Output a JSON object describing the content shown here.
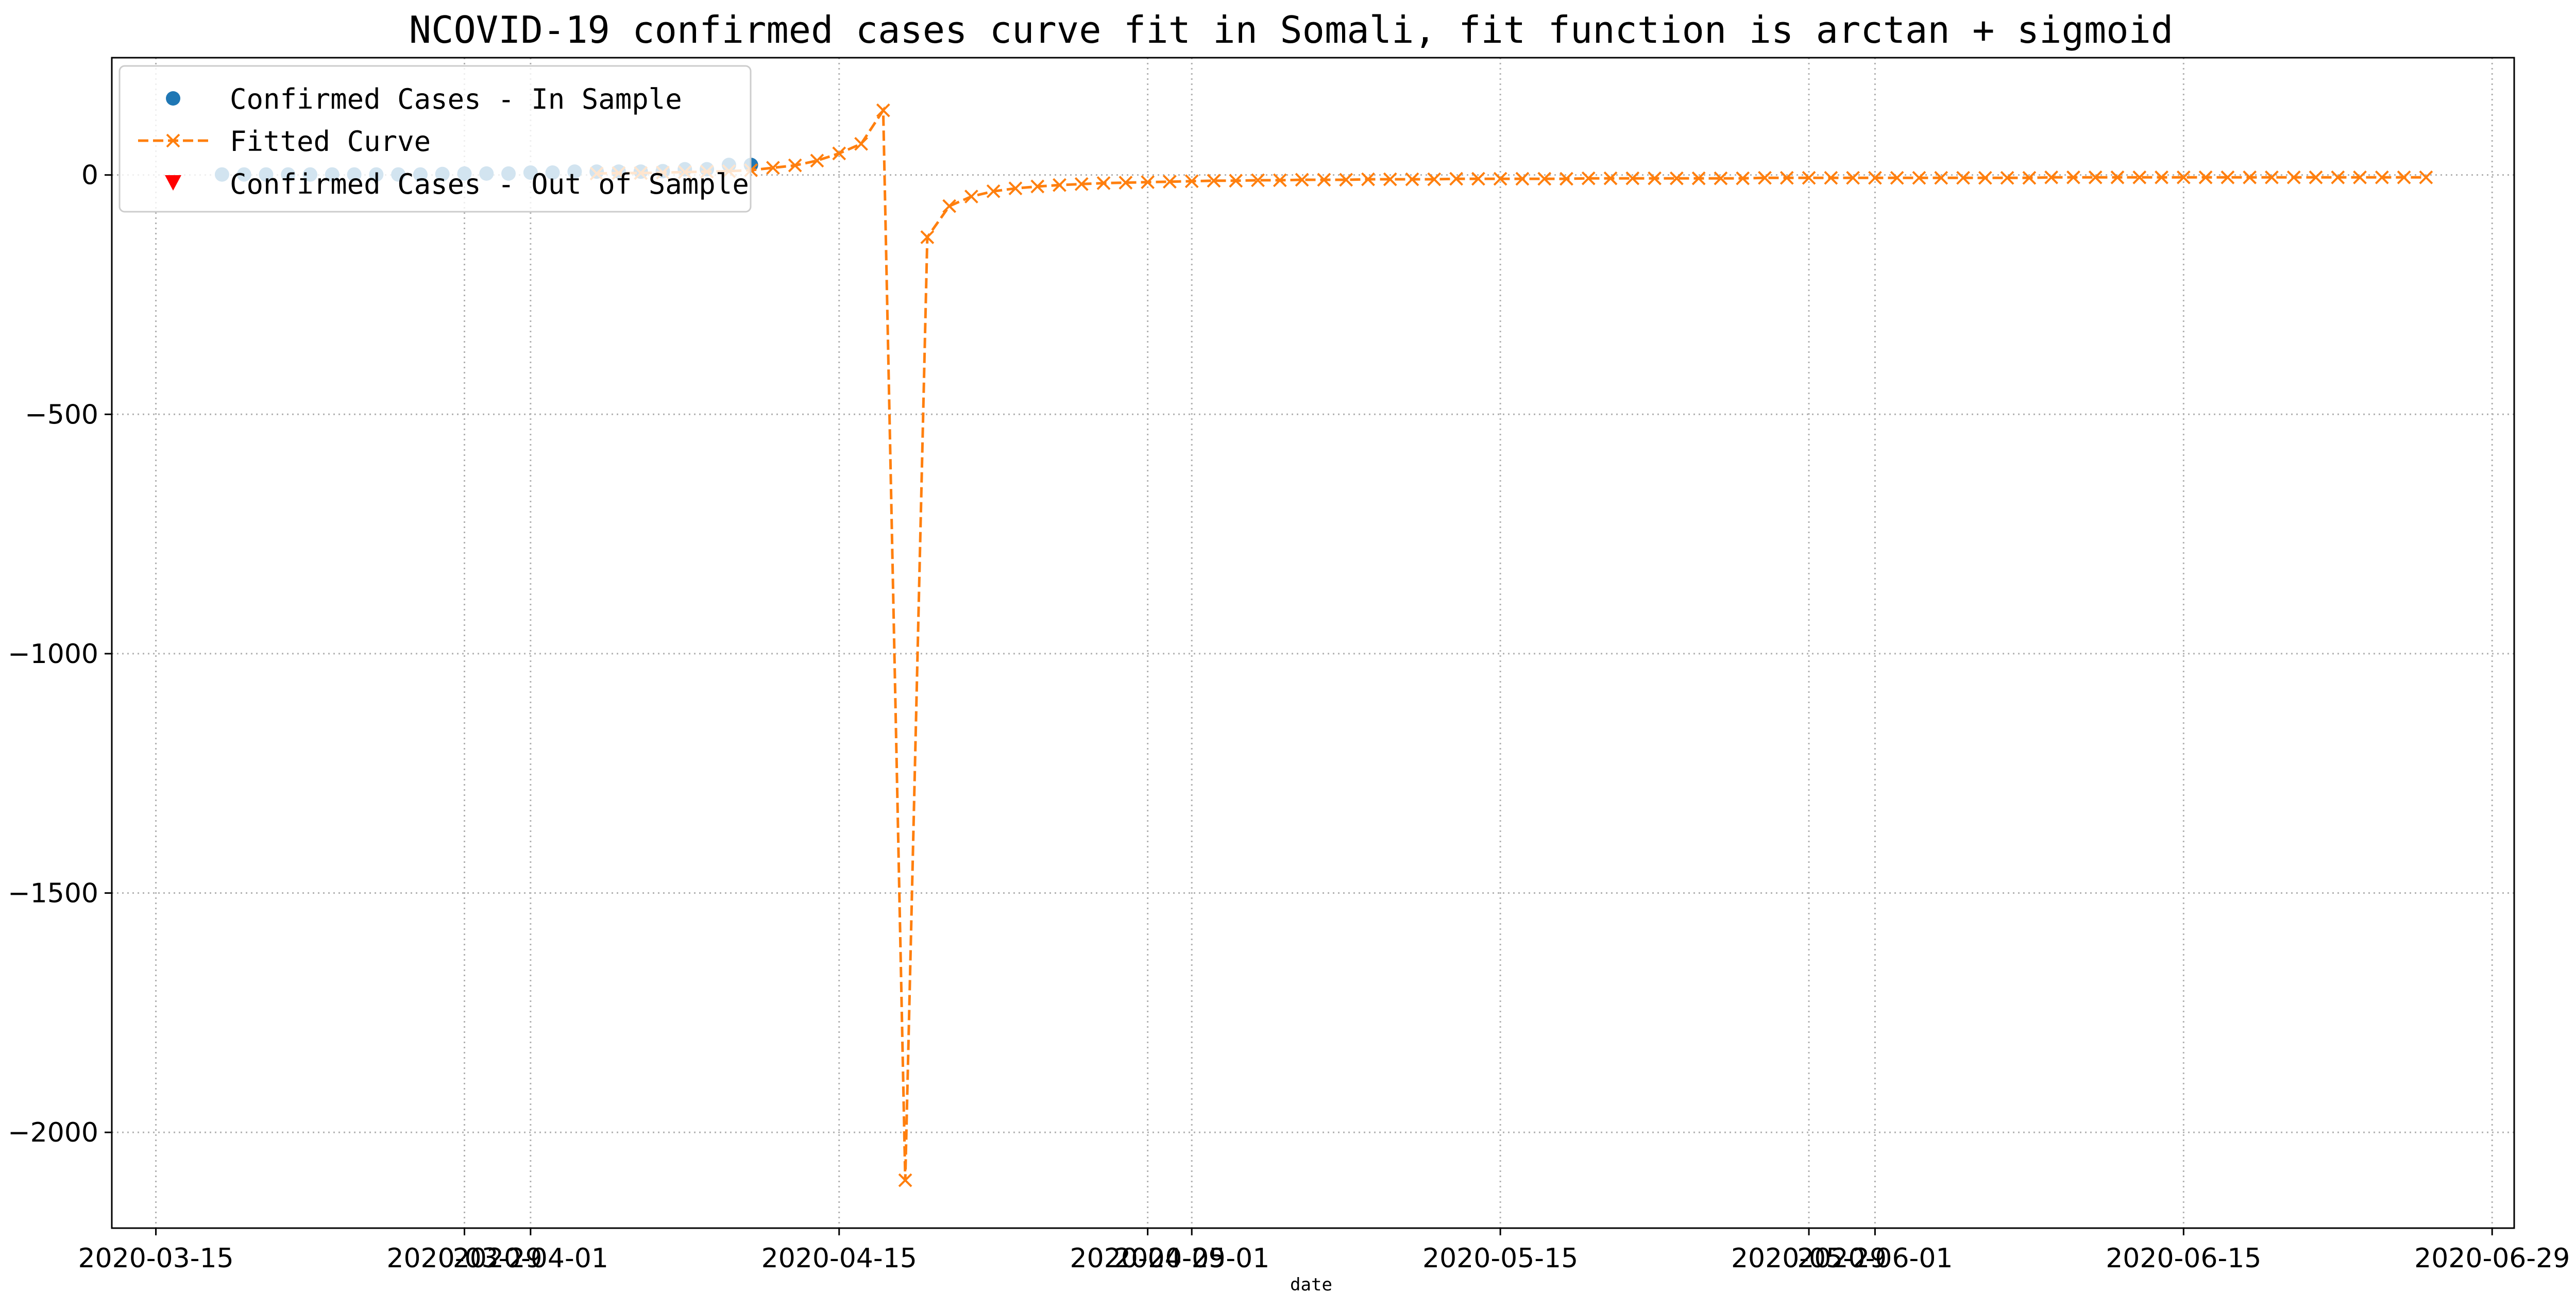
{
  "chart_data": {
    "type": "line",
    "title": "NCOVID-19 confirmed cases curve fit in Somali, fit function is arctan + sigmoid",
    "xlabel": "date",
    "ylabel": "",
    "grid": true,
    "legend_placement": "upper-left",
    "xlim": [
      "2020-03-13",
      "2020-06-30"
    ],
    "ylim": [
      -2200,
      245
    ],
    "x_ticks": [
      {
        "date": "2020-03-15",
        "label": "2020-03-15"
      },
      {
        "date": "2020-03-29",
        "label": "2020-03-29"
      },
      {
        "date": "2020-04-01",
        "label": "2020-04-01"
      },
      {
        "date": "2020-04-15",
        "label": "2020-04-15"
      },
      {
        "date": "2020-04-29",
        "label": "2020-04-29"
      },
      {
        "date": "2020-05-01",
        "label": "2020-05-01"
      },
      {
        "date": "2020-05-15",
        "label": "2020-05-15"
      },
      {
        "date": "2020-05-29",
        "label": "2020-05-29"
      },
      {
        "date": "2020-06-01",
        "label": "2020-06-01"
      },
      {
        "date": "2020-06-15",
        "label": "2020-06-15"
      },
      {
        "date": "2020-06-29",
        "label": "2020-06-29"
      }
    ],
    "y_ticks": [
      {
        "value": 0,
        "label": "0"
      },
      {
        "value": -500,
        "label": "−500"
      },
      {
        "value": -1000,
        "label": "−1000"
      },
      {
        "value": -1500,
        "label": "−1500"
      },
      {
        "value": -2000,
        "label": "−2000"
      }
    ],
    "legend": [
      {
        "label": "Confirmed Cases - In Sample",
        "marker": "circle",
        "color": "#1f77b4"
      },
      {
        "label": "Fitted Curve",
        "marker": "x-dashed",
        "color": "#ff7f0e"
      },
      {
        "label": "Confirmed Cases - Out of Sample",
        "marker": "triangle-down",
        "color": "#ff0000"
      }
    ],
    "series": [
      {
        "name": "Confirmed Cases - In Sample",
        "style": "markers",
        "marker": "circle",
        "color": "#1f77b4",
        "x": [
          "2020-03-18",
          "2020-03-19",
          "2020-03-20",
          "2020-03-21",
          "2020-03-22",
          "2020-03-23",
          "2020-03-24",
          "2020-03-25",
          "2020-03-26",
          "2020-03-27",
          "2020-03-28",
          "2020-03-29",
          "2020-03-30",
          "2020-03-31",
          "2020-04-01",
          "2020-04-02",
          "2020-04-03",
          "2020-04-04",
          "2020-04-05",
          "2020-04-06",
          "2020-04-07",
          "2020-04-08",
          "2020-04-09",
          "2020-04-10",
          "2020-04-11"
        ],
        "y": [
          1,
          1,
          1,
          1,
          1,
          1,
          1,
          1,
          1,
          1,
          2,
          3,
          3,
          3,
          5,
          5,
          7,
          7,
          7,
          7,
          8,
          12,
          12,
          21,
          21
        ]
      },
      {
        "name": "Fitted Curve",
        "style": "dashed-line-x-markers",
        "color": "#ff7f0e",
        "x": [
          "2020-04-04",
          "2020-04-05",
          "2020-04-06",
          "2020-04-07",
          "2020-04-08",
          "2020-04-09",
          "2020-04-10",
          "2020-04-11",
          "2020-04-12",
          "2020-04-13",
          "2020-04-14",
          "2020-04-15",
          "2020-04-16",
          "2020-04-17",
          "2020-04-18",
          "2020-04-19",
          "2020-04-20",
          "2020-04-21",
          "2020-04-22",
          "2020-04-23",
          "2020-04-24",
          "2020-04-25",
          "2020-04-26",
          "2020-04-27",
          "2020-04-28",
          "2020-04-29",
          "2020-04-30",
          "2020-05-01",
          "2020-05-02",
          "2020-05-03",
          "2020-05-04",
          "2020-05-05",
          "2020-05-06",
          "2020-05-07",
          "2020-05-08",
          "2020-05-09",
          "2020-05-10",
          "2020-05-11",
          "2020-05-12",
          "2020-05-13",
          "2020-05-14",
          "2020-05-15",
          "2020-05-16",
          "2020-05-17",
          "2020-05-18",
          "2020-05-19",
          "2020-05-20",
          "2020-05-21",
          "2020-05-22",
          "2020-05-23",
          "2020-05-24",
          "2020-05-25",
          "2020-05-26",
          "2020-05-27",
          "2020-05-28",
          "2020-05-29",
          "2020-05-30",
          "2020-05-31",
          "2020-06-01",
          "2020-06-02",
          "2020-06-03",
          "2020-06-04",
          "2020-06-05",
          "2020-06-06",
          "2020-06-07",
          "2020-06-08",
          "2020-06-09",
          "2020-06-10",
          "2020-06-11",
          "2020-06-12",
          "2020-06-13",
          "2020-06-14",
          "2020-06-15",
          "2020-06-16",
          "2020-06-17",
          "2020-06-18",
          "2020-06-19",
          "2020-06-20",
          "2020-06-21",
          "2020-06-22",
          "2020-06-23",
          "2020-06-24",
          "2020-06-25",
          "2020-06-26"
        ],
        "y": [
          3,
          4,
          4,
          5,
          6,
          7,
          8,
          10,
          15,
          20,
          30,
          45,
          65,
          135,
          -2100,
          -130,
          -65,
          -45,
          -34,
          -28,
          -24,
          -21,
          -19,
          -17,
          -16,
          -15,
          -14,
          -13,
          -12,
          -12,
          -11,
          -11,
          -10,
          -10,
          -10,
          -9,
          -9,
          -9,
          -9,
          -8,
          -8,
          -8,
          -8,
          -8,
          -8,
          -7,
          -7,
          -7,
          -7,
          -7,
          -7,
          -7,
          -7,
          -6,
          -6,
          -6,
          -6,
          -6,
          -6,
          -6,
          -6,
          -6,
          -6,
          -6,
          -6,
          -6,
          -5,
          -5,
          -5,
          -5,
          -5,
          -5,
          -5,
          -5,
          -5,
          -5,
          -5,
          -5,
          -5,
          -5,
          -5,
          -5,
          -5,
          -5
        ]
      }
    ]
  }
}
